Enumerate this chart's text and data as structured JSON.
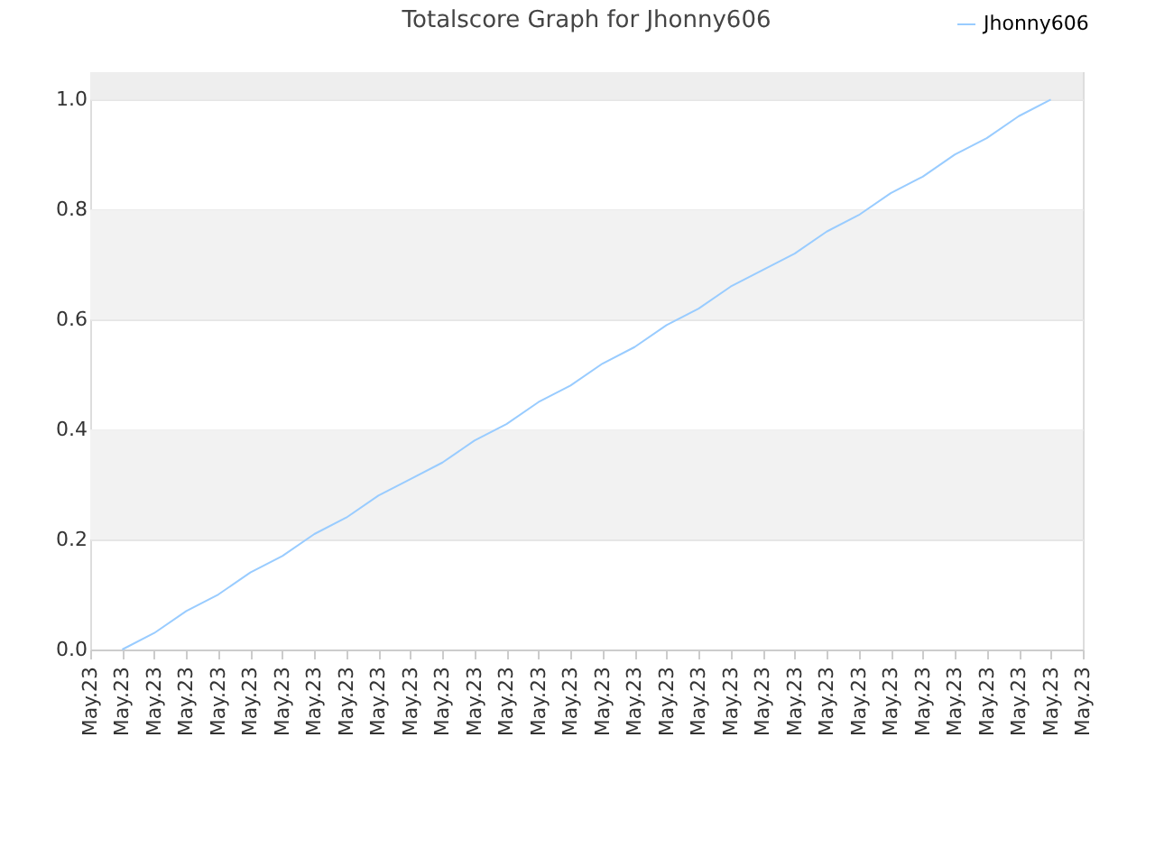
{
  "chart_data": {
    "type": "line",
    "title": "Totalscore Graph for Jhonny606",
    "categories": [
      "May.23",
      "May.23",
      "May.23",
      "May.23",
      "May.23",
      "May.23",
      "May.23",
      "May.23",
      "May.23",
      "May.23",
      "May.23",
      "May.23",
      "May.23",
      "May.23",
      "May.23",
      "May.23",
      "May.23",
      "May.23",
      "May.23",
      "May.23",
      "May.23",
      "May.23",
      "May.23",
      "May.23",
      "May.23",
      "May.23",
      "May.23",
      "May.23",
      "May.23",
      "May.23",
      "May.23",
      "May.23"
    ],
    "series": [
      {
        "name": "Jhonny606",
        "color": "#99ccff",
        "values": [
          null,
          0,
          0.03,
          0.07,
          0.1,
          0.14,
          0.17,
          0.21,
          0.24,
          0.28,
          0.31,
          0.34,
          0.38,
          0.41,
          0.45,
          0.48,
          0.52,
          0.55,
          0.59,
          0.62,
          0.66,
          0.69,
          0.72,
          0.76,
          0.79,
          0.83,
          0.86,
          0.9,
          0.93,
          0.97,
          1.0,
          null
        ]
      }
    ],
    "ylim": [
      0,
      1.05
    ],
    "yticks": [
      {
        "value": 0,
        "label": "0.0"
      },
      0.2,
      0.4,
      0.6,
      0.8,
      {
        "value": 1,
        "label": "1.0"
      }
    ],
    "bands": [
      {
        "axis": "y",
        "from": 0.2,
        "to": 0.4,
        "color": "#f2f2f2"
      },
      {
        "axis": "y",
        "from": 0.6,
        "to": 0.8,
        "color": "#f2f2f2"
      },
      {
        "axis": "y",
        "from": 1.0,
        "to": 1.05,
        "color": "#eeeeee"
      }
    ],
    "grid": "y",
    "legend": "top right",
    "line_style": "solid"
  }
}
